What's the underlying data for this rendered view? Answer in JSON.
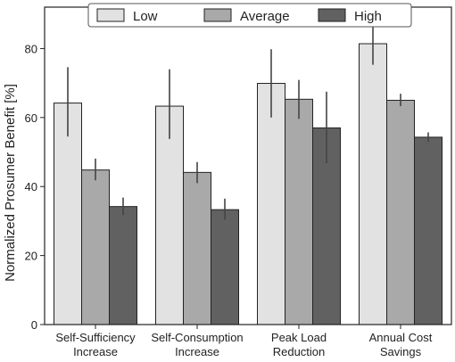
{
  "chart_data": {
    "type": "bar",
    "ylabel": "Normalized Prosumer Benefit [%]",
    "xlabel": "",
    "ylim": [
      0,
      92
    ],
    "yticks": [
      0,
      20,
      40,
      60,
      80
    ],
    "legend_position": "top-center",
    "grid": false,
    "categories": [
      [
        "Self-Sufficiency",
        "Increase"
      ],
      [
        "Self-Consumption",
        "Increase"
      ],
      [
        "Peak Load",
        "Reduction"
      ],
      [
        "Annual Cost",
        "Savings"
      ]
    ],
    "series": [
      {
        "name": "Low",
        "color": "#e2e2e2",
        "values": [
          64.2,
          63.3,
          69.9,
          81.4
        ],
        "err_low": [
          54.5,
          53.8,
          60.0,
          75.3
        ],
        "err_high": [
          74.6,
          74.0,
          79.8,
          87.6
        ]
      },
      {
        "name": "Average",
        "color": "#a9a9a9",
        "values": [
          44.8,
          44.1,
          65.3,
          65.0
        ],
        "err_low": [
          41.8,
          41.0,
          59.6,
          63.3
        ],
        "err_high": [
          48.1,
          47.1,
          70.9,
          66.9
        ]
      },
      {
        "name": "High",
        "color": "#616161",
        "values": [
          34.2,
          33.3,
          57.0,
          54.3
        ],
        "err_low": [
          31.7,
          30.4,
          46.8,
          53.0
        ],
        "err_high": [
          36.8,
          36.5,
          67.5,
          55.7
        ]
      }
    ]
  }
}
